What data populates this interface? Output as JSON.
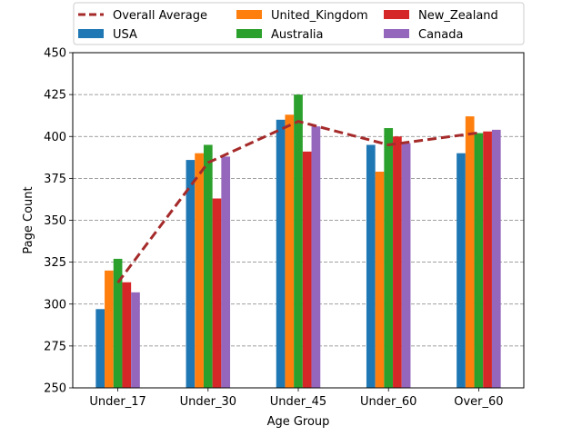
{
  "chart_data": {
    "type": "bar",
    "title": "",
    "xlabel": "Age Group",
    "ylabel": "Page Count",
    "categories": [
      "Under_17",
      "Under_30",
      "Under_45",
      "Under_60",
      "Over_60"
    ],
    "ylim": [
      250,
      450
    ],
    "yticks": [
      250,
      275,
      300,
      325,
      350,
      375,
      400,
      425,
      450
    ],
    "grid": "y-dashed",
    "legend_position": "top",
    "series": [
      {
        "name": "USA",
        "color": "#1f77b4",
        "values": [
          297,
          386,
          410,
          395,
          390
        ]
      },
      {
        "name": "United_Kingdom",
        "color": "#ff7f0e",
        "values": [
          320,
          390,
          413,
          379,
          412
        ]
      },
      {
        "name": "Australia",
        "color": "#2ca02c",
        "values": [
          327,
          395,
          425,
          405,
          402
        ]
      },
      {
        "name": "New_Zealand",
        "color": "#d62728",
        "values": [
          313,
          363,
          391,
          400,
          403
        ]
      },
      {
        "name": "Canada",
        "color": "#9467bd",
        "values": [
          307,
          388,
          406,
          396,
          404
        ]
      }
    ],
    "line": {
      "name": "Overall Average",
      "color": "#a52a2a",
      "style": "dashed",
      "values": [
        312.8,
        384.4,
        409.0,
        395.0,
        402.2
      ]
    },
    "legend_order": [
      "line",
      0,
      1,
      2,
      3,
      4
    ]
  }
}
